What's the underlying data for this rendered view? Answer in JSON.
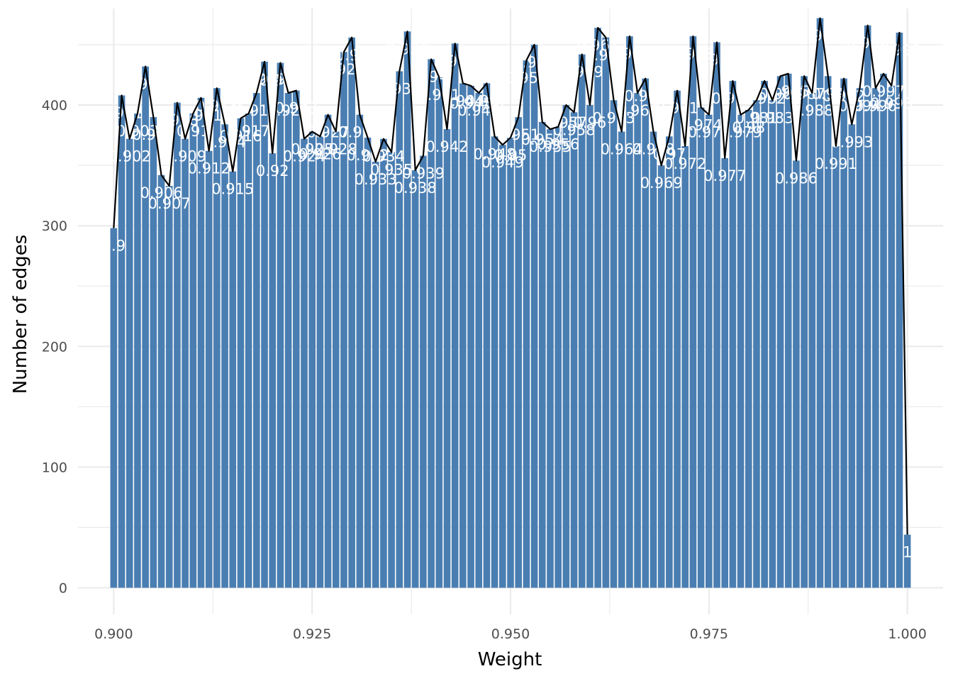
{
  "chart_data": {
    "type": "bar",
    "title": "",
    "xlabel": "Weight",
    "ylabel": "Number of edges",
    "xlim": [
      0.8955,
      1.0045
    ],
    "ylim": [
      -22,
      480
    ],
    "grid": true,
    "legend": "none",
    "bar_color": "#4a7eb2",
    "line_color": "#000000",
    "grid_color": "#ebebeb",
    "x_ticks": [
      0.9,
      0.925,
      0.95,
      0.975,
      1.0
    ],
    "x_tick_labels": [
      "0.900",
      "0.925",
      "0.950",
      "0.975",
      "1.000"
    ],
    "y_ticks": [
      0,
      100,
      200,
      300,
      400
    ],
    "y_tick_labels": [
      "0",
      "100",
      "200",
      "300",
      "400"
    ],
    "bins": [
      {
        "x": 0.9,
        "y": 298,
        "label": "0.9"
      },
      {
        "x": 0.901,
        "y": 408,
        "label": "0.901"
      },
      {
        "x": 0.902,
        "y": 372,
        "label": "0.902"
      },
      {
        "x": 0.903,
        "y": 393,
        "label": "0.903"
      },
      {
        "x": 0.904,
        "y": 432,
        "label": "0.904"
      },
      {
        "x": 0.905,
        "y": 390,
        "label": "0.905"
      },
      {
        "x": 0.906,
        "y": 342,
        "label": "0.906"
      },
      {
        "x": 0.907,
        "y": 333,
        "label": "0.907"
      },
      {
        "x": 0.908,
        "y": 402,
        "label": "0.908"
      },
      {
        "x": 0.909,
        "y": 372,
        "label": "0.909"
      },
      {
        "x": 0.91,
        "y": 393,
        "label": "0.91"
      },
      {
        "x": 0.911,
        "y": 406,
        "label": "0.911"
      },
      {
        "x": 0.912,
        "y": 362,
        "label": "0.912"
      },
      {
        "x": 0.913,
        "y": 414,
        "label": "0.913"
      },
      {
        "x": 0.914,
        "y": 384,
        "label": "0.914"
      },
      {
        "x": 0.915,
        "y": 345,
        "label": "0.915"
      },
      {
        "x": 0.916,
        "y": 389,
        "label": "0.916"
      },
      {
        "x": 0.917,
        "y": 393,
        "label": "0.917"
      },
      {
        "x": 0.918,
        "y": 410,
        "label": "0.918"
      },
      {
        "x": 0.919,
        "y": 436,
        "label": "0.919"
      },
      {
        "x": 0.92,
        "y": 360,
        "label": "0.92"
      },
      {
        "x": 0.921,
        "y": 435,
        "label": "0.921"
      },
      {
        "x": 0.922,
        "y": 410,
        "label": "0.922"
      },
      {
        "x": 0.923,
        "y": 412,
        "label": "0.923"
      },
      {
        "x": 0.924,
        "y": 372,
        "label": "0.924"
      },
      {
        "x": 0.925,
        "y": 378,
        "label": "0.925"
      },
      {
        "x": 0.926,
        "y": 374,
        "label": "0.926"
      },
      {
        "x": 0.927,
        "y": 392,
        "label": "0.927"
      },
      {
        "x": 0.928,
        "y": 378,
        "label": "0.928"
      },
      {
        "x": 0.929,
        "y": 444,
        "label": "0.929"
      },
      {
        "x": 0.93,
        "y": 456,
        "label": "0.93"
      },
      {
        "x": 0.931,
        "y": 392,
        "label": "0.931"
      },
      {
        "x": 0.932,
        "y": 373,
        "label": "0.932"
      },
      {
        "x": 0.933,
        "y": 353,
        "label": "0.933"
      },
      {
        "x": 0.934,
        "y": 372,
        "label": "0.934"
      },
      {
        "x": 0.935,
        "y": 361,
        "label": "0.935"
      },
      {
        "x": 0.936,
        "y": 428,
        "label": "0.936"
      },
      {
        "x": 0.937,
        "y": 461,
        "label": "0.937"
      },
      {
        "x": 0.938,
        "y": 346,
        "label": "0.938"
      },
      {
        "x": 0.939,
        "y": 358,
        "label": "0.939"
      },
      {
        "x": 0.94,
        "y": 438,
        "label": "0.94"
      },
      {
        "x": 0.941,
        "y": 423,
        "label": "0.941"
      },
      {
        "x": 0.942,
        "y": 380,
        "label": "0.942"
      },
      {
        "x": 0.943,
        "y": 451,
        "label": "0.943"
      },
      {
        "x": 0.944,
        "y": 418,
        "label": "0.944"
      },
      {
        "x": 0.945,
        "y": 416,
        "label": "0.945"
      },
      {
        "x": 0.946,
        "y": 410,
        "label": "0.946"
      },
      {
        "x": 0.947,
        "y": 418,
        "label": "0.947"
      },
      {
        "x": 0.948,
        "y": 374,
        "label": "0.948"
      },
      {
        "x": 0.949,
        "y": 367,
        "label": "0.949"
      },
      {
        "x": 0.95,
        "y": 373,
        "label": "0.95"
      },
      {
        "x": 0.951,
        "y": 390,
        "label": "0.951"
      },
      {
        "x": 0.952,
        "y": 437,
        "label": "0.952"
      },
      {
        "x": 0.953,
        "y": 450,
        "label": "0.953"
      },
      {
        "x": 0.954,
        "y": 386,
        "label": "0.954"
      },
      {
        "x": 0.955,
        "y": 380,
        "label": "0.955"
      },
      {
        "x": 0.956,
        "y": 382,
        "label": "0.956"
      },
      {
        "x": 0.957,
        "y": 400,
        "label": "0.957"
      },
      {
        "x": 0.958,
        "y": 394,
        "label": "0.958"
      },
      {
        "x": 0.959,
        "y": 442,
        "label": "0.959"
      },
      {
        "x": 0.96,
        "y": 400,
        "label": "0.96"
      },
      {
        "x": 0.961,
        "y": 464,
        "label": "0.961"
      },
      {
        "x": 0.962,
        "y": 456,
        "label": "0.962"
      },
      {
        "x": 0.963,
        "y": 404,
        "label": "0.963"
      },
      {
        "x": 0.964,
        "y": 378,
        "label": "0.964"
      },
      {
        "x": 0.965,
        "y": 457,
        "label": "0.965"
      },
      {
        "x": 0.966,
        "y": 410,
        "label": "0.966"
      },
      {
        "x": 0.967,
        "y": 422,
        "label": "0.967"
      },
      {
        "x": 0.968,
        "y": 378,
        "label": "0.968"
      },
      {
        "x": 0.969,
        "y": 350,
        "label": "0.969"
      },
      {
        "x": 0.97,
        "y": 374,
        "label": "0.97"
      },
      {
        "x": 0.971,
        "y": 412,
        "label": "0.971"
      },
      {
        "x": 0.972,
        "y": 366,
        "label": "0.972"
      },
      {
        "x": 0.973,
        "y": 457,
        "label": "0.973"
      },
      {
        "x": 0.974,
        "y": 398,
        "label": "0.974"
      },
      {
        "x": 0.975,
        "y": 392,
        "label": "0.975"
      },
      {
        "x": 0.976,
        "y": 452,
        "label": "0.976"
      },
      {
        "x": 0.977,
        "y": 356,
        "label": "0.977"
      },
      {
        "x": 0.978,
        "y": 420,
        "label": "0.978"
      },
      {
        "x": 0.979,
        "y": 392,
        "label": "0.979"
      },
      {
        "x": 0.98,
        "y": 396,
        "label": "0.98"
      },
      {
        "x": 0.981,
        "y": 404,
        "label": "0.981"
      },
      {
        "x": 0.982,
        "y": 420,
        "label": "0.982"
      },
      {
        "x": 0.983,
        "y": 404,
        "label": "0.983"
      },
      {
        "x": 0.984,
        "y": 424,
        "label": "0.984"
      },
      {
        "x": 0.985,
        "y": 426,
        "label": "0.985"
      },
      {
        "x": 0.986,
        "y": 354,
        "label": "0.986"
      },
      {
        "x": 0.987,
        "y": 424,
        "label": "0.987"
      },
      {
        "x": 0.988,
        "y": 410,
        "label": "0.988"
      },
      {
        "x": 0.989,
        "y": 472,
        "label": "0.989"
      },
      {
        "x": 0.99,
        "y": 424,
        "label": "0.99"
      },
      {
        "x": 0.991,
        "y": 366,
        "label": "0.991"
      },
      {
        "x": 0.992,
        "y": 422,
        "label": "0.992"
      },
      {
        "x": 0.993,
        "y": 384,
        "label": "0.993"
      },
      {
        "x": 0.994,
        "y": 414,
        "label": "0.994"
      },
      {
        "x": 0.995,
        "y": 466,
        "label": "0.995"
      },
      {
        "x": 0.996,
        "y": 414,
        "label": "0.996"
      },
      {
        "x": 0.997,
        "y": 426,
        "label": "0.997"
      },
      {
        "x": 0.998,
        "y": 416,
        "label": "0.998"
      },
      {
        "x": 0.999,
        "y": 460,
        "label": "0.999"
      },
      {
        "x": 1.0,
        "y": 44,
        "label": "1"
      }
    ]
  }
}
